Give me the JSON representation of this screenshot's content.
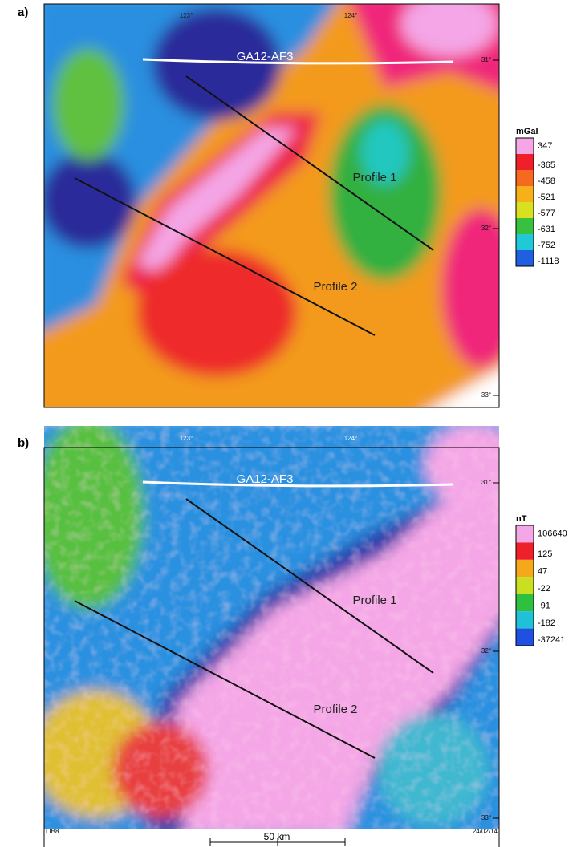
{
  "footer": {
    "left": "LIB8",
    "scale": "50 km",
    "date": "24/02/14"
  },
  "panels": [
    {
      "label": "a)",
      "unit": "mGal",
      "legend": [
        {
          "label": "347",
          "color": "#f4a6e6"
        },
        {
          "label": "-365",
          "color": "#f0202a"
        },
        {
          "label": "-458",
          "color": "#f56a1e"
        },
        {
          "label": "-521",
          "color": "#f5b01a"
        },
        {
          "label": "-577",
          "color": "#d8e020"
        },
        {
          "label": "-631",
          "color": "#38c040"
        },
        {
          "label": "-752",
          "color": "#20c8d8"
        },
        {
          "label": "-1118",
          "color": "#2060e0"
        }
      ],
      "lon_ticks": [
        "123°",
        "124°"
      ],
      "lat_ticks": [
        "31°",
        "32°",
        "33°"
      ],
      "survey_line": "GA12-AF3",
      "profiles": [
        "Profile 1",
        "Profile 2"
      ]
    },
    {
      "label": "b)",
      "unit": "nT",
      "legend": [
        {
          "label": "106640",
          "color": "#f4a6e6"
        },
        {
          "label": "125",
          "color": "#f0202a"
        },
        {
          "label": "47",
          "color": "#f5a81a"
        },
        {
          "label": "-22",
          "color": "#c8e020"
        },
        {
          "label": "-91",
          "color": "#30c040"
        },
        {
          "label": "-182",
          "color": "#20c0d8"
        },
        {
          "label": "-37241",
          "color": "#2050e0"
        }
      ],
      "lon_ticks": [
        "123°",
        "124°"
      ],
      "lat_ticks": [
        "31°",
        "32°",
        "33°"
      ],
      "survey_line": "GA12-AF3",
      "profiles": [
        "Profile 1",
        "Profile 2"
      ]
    }
  ]
}
